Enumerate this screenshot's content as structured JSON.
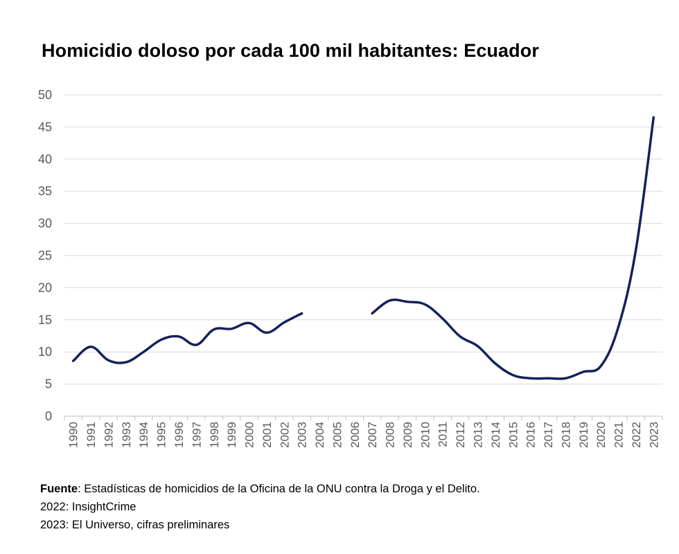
{
  "chart_data": {
    "type": "line",
    "title": "Homicidio doloso por cada 100 mil habitantes: Ecuador",
    "xlabel": "",
    "ylabel": "",
    "ylim": [
      0,
      50
    ],
    "yticks": [
      0,
      5,
      10,
      15,
      20,
      25,
      30,
      35,
      40,
      45,
      50
    ],
    "grid": true,
    "categories": [
      "1990",
      "1991",
      "1992",
      "1993",
      "1994",
      "1995",
      "1996",
      "1997",
      "1998",
      "1999",
      "2000",
      "2001",
      "2002",
      "2003",
      "2004",
      "2005",
      "2006",
      "2007",
      "2008",
      "2009",
      "2010",
      "2011",
      "2012",
      "2013",
      "2014",
      "2015",
      "2016",
      "2017",
      "2018",
      "2019",
      "2020",
      "2021",
      "2022",
      "2023"
    ],
    "series": [
      {
        "name": "Homicidio doloso por cada 100 mil habitantes",
        "color": "#13215a",
        "values": [
          8.6,
          10.8,
          8.7,
          8.4,
          10.0,
          11.9,
          12.4,
          11.1,
          13.5,
          13.6,
          14.5,
          13.0,
          14.6,
          16.0,
          null,
          null,
          null,
          16.0,
          18.0,
          17.8,
          17.4,
          15.2,
          12.4,
          10.9,
          8.2,
          6.4,
          5.9,
          5.9,
          5.9,
          6.9,
          7.8,
          13.9,
          26.0,
          46.5
        ]
      }
    ]
  },
  "notes": {
    "fuente_label": "Fuente",
    "fuente_text": ": Estadísticas de homicidios de la Oficina de la ONU contra la Droga y el Delito.",
    "line2": "2022: InsightCrime",
    "line3": "2023: El Universo, cifras preliminares"
  }
}
